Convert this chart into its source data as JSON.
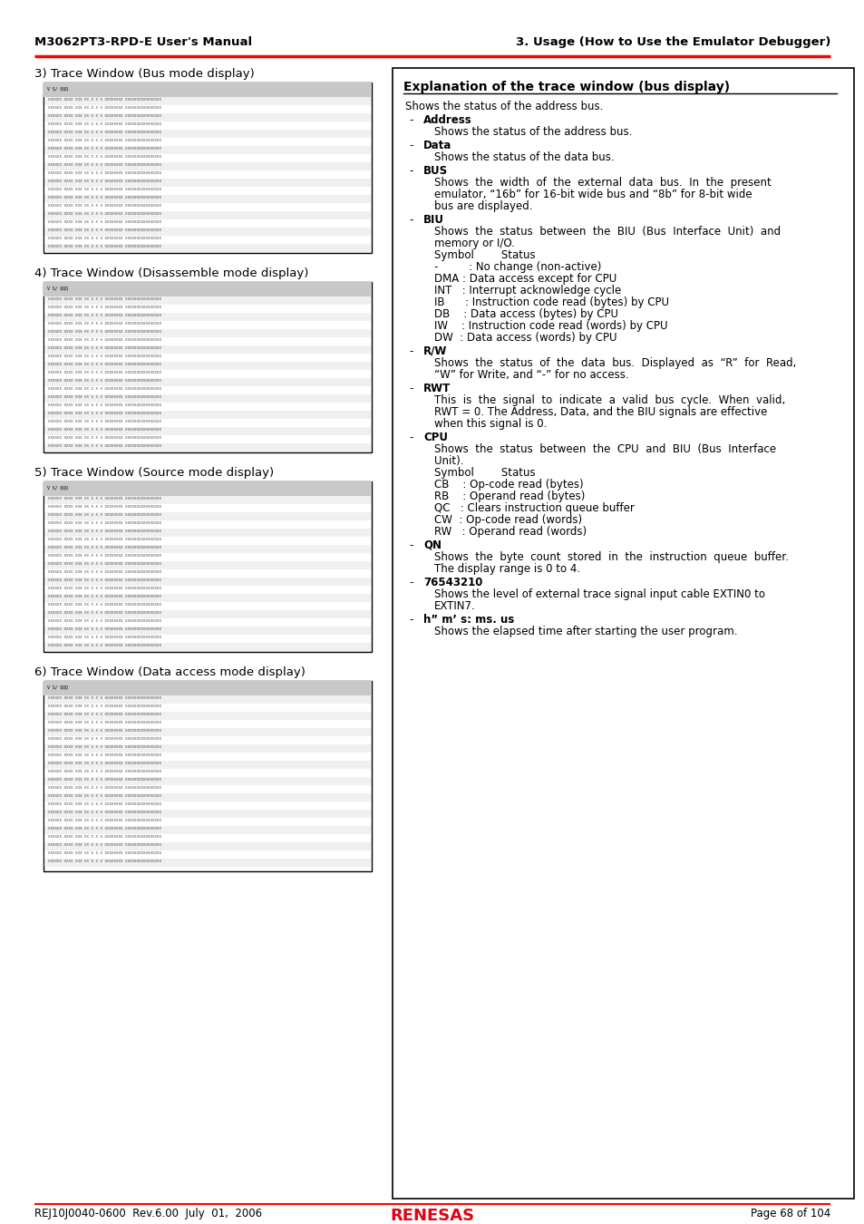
{
  "header_left": "M3062PT3-RPD-E User's Manual",
  "header_right": "3. Usage (How to Use the Emulator Debugger)",
  "footer_left": "REJ10J0040-0600  Rev.6.00  July  01,  2006",
  "footer_right": "Page 68 of 104",
  "section3_title": "3) Trace Window (Bus mode display)",
  "section4_title": "4) Trace Window (Disassemble mode display)",
  "section5_title": "5) Trace Window (Source mode display)",
  "section6_title": "6) Trace Window (Data access mode display)",
  "box_title": "Explanation of the trace window (bus display)",
  "box_intro": "Shows the status of the address bus.",
  "items": [
    {
      "label": "Address",
      "desc_lines": [
        "Shows the status of the address bus."
      ]
    },
    {
      "label": "Data",
      "desc_lines": [
        "Shows the status of the data bus."
      ]
    },
    {
      "label": "BUS",
      "desc_lines": [
        "Shows  the  width  of  the  external  data  bus.  In  the  present",
        "emulator, “16b” for 16-bit wide bus and “8b” for 8-bit wide",
        "bus are displayed."
      ]
    },
    {
      "label": "BIU",
      "desc_lines": [
        "Shows  the  status  between  the  BIU  (Bus  Interface  Unit)  and",
        "memory or I/O.",
        "Symbol        Status",
        "-         : No change (non-active)",
        "DMA : Data access except for CPU",
        "INT   : Interrupt acknowledge cycle",
        "IB      : Instruction code read (bytes) by CPU",
        "DB    : Data access (bytes) by CPU",
        "IW    : Instruction code read (words) by CPU",
        "DW  : Data access (words) by CPU"
      ]
    },
    {
      "label": "R/W",
      "desc_lines": [
        "Shows  the  status  of  the  data  bus.  Displayed  as  “R”  for  Read,",
        "“W” for Write, and “-” for no access."
      ]
    },
    {
      "label": "RWT",
      "desc_lines": [
        "This  is  the  signal  to  indicate  a  valid  bus  cycle.  When  valid,",
        "RWT = 0. The Address, Data, and the BIU signals are effective",
        "when this signal is 0."
      ]
    },
    {
      "label": "CPU",
      "desc_lines": [
        "Shows  the  status  between  the  CPU  and  BIU  (Bus  Interface",
        "Unit).",
        "Symbol        Status",
        "CB    : Op-code read (bytes)",
        "RB    : Operand read (bytes)",
        "QC   : Clears instruction queue buffer",
        "CW  : Op-code read (words)",
        "RW   : Operand read (words)"
      ]
    },
    {
      "label": "QN",
      "desc_lines": [
        "Shows  the  byte  count  stored  in  the  instruction  queue  buffer.",
        "The display range is 0 to 4."
      ]
    },
    {
      "label": "76543210",
      "desc_lines": [
        "Shows the level of external trace signal input cable EXTIN0 to",
        "EXTIN7."
      ]
    },
    {
      "label": "h” m’ s: ms. us",
      "desc_lines": [
        "Shows the elapsed time after starting the user program."
      ]
    }
  ]
}
